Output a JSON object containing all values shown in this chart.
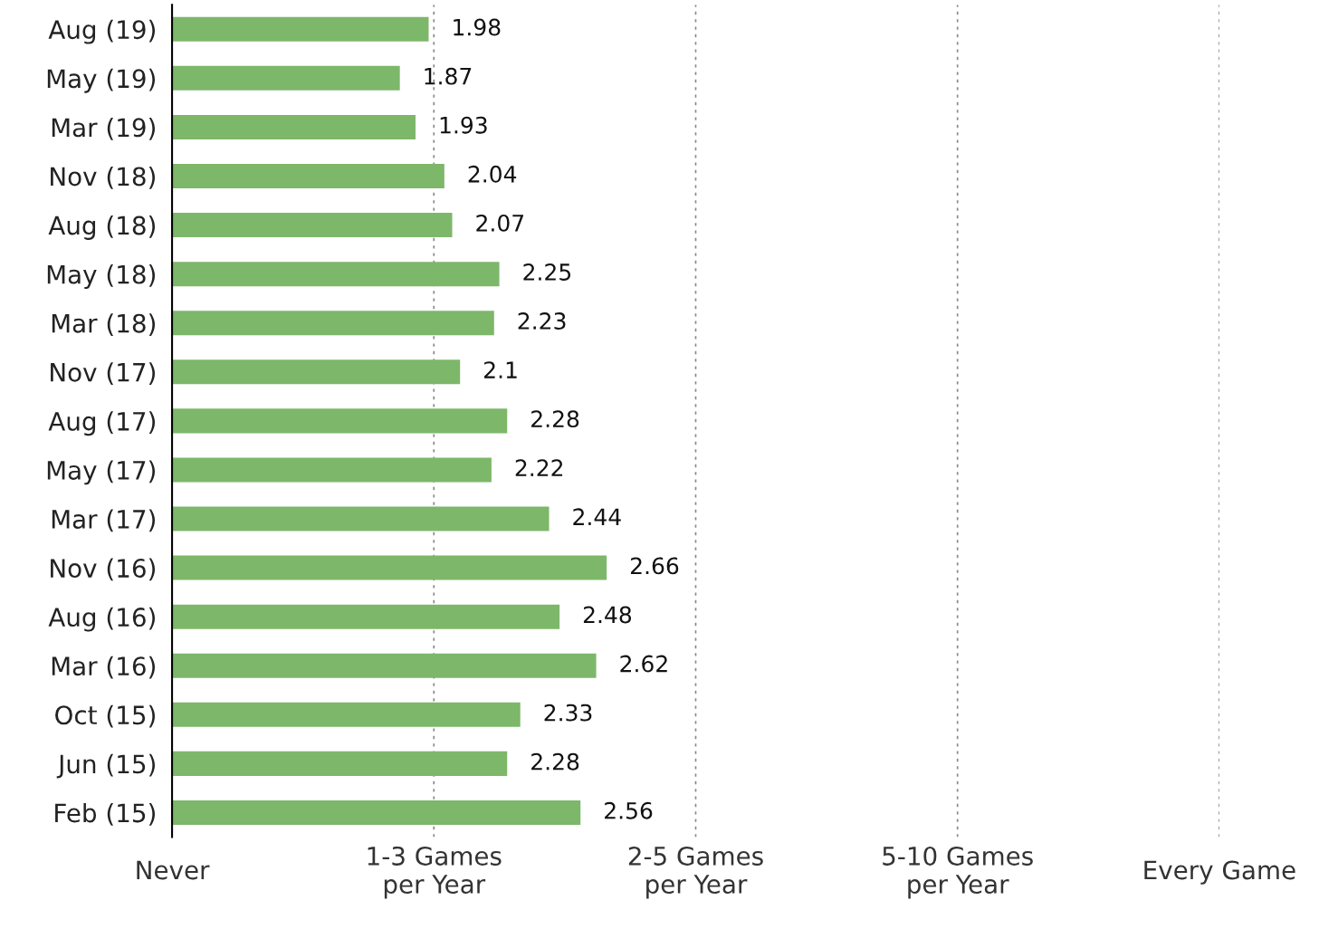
{
  "chart_data": {
    "type": "bar",
    "orientation": "horizontal",
    "categories": [
      "Aug (19)",
      "May (19)",
      "Mar (19)",
      "Nov (18)",
      "Aug (18)",
      "May (18)",
      "Mar (18)",
      "Nov (17)",
      "Aug (17)",
      "May (17)",
      "Mar (17)",
      "Nov (16)",
      "Aug (16)",
      "Mar (16)",
      "Oct (15)",
      "Jun (15)",
      "Feb (15)"
    ],
    "values": [
      1.98,
      1.87,
      1.93,
      2.04,
      2.07,
      2.25,
      2.23,
      2.1,
      2.28,
      2.22,
      2.44,
      2.66,
      2.48,
      2.62,
      2.33,
      2.28,
      2.56
    ],
    "color": "#7db76a",
    "xlim": [
      1,
      5
    ],
    "tick_labels": "y",
    "ref_lines": [
      {
        "axis": "x",
        "value": 2,
        "label": "1-3 Games\nper Year",
        "line_style": "dotted",
        "color": "#888888"
      },
      {
        "axis": "x",
        "value": 3,
        "label": "2-5 Games\nper Year",
        "line_style": "dotted",
        "color": "#888888"
      },
      {
        "axis": "x",
        "value": 4,
        "label": "5-10 Games\nper Year",
        "line_style": "dotted",
        "color": "#888888"
      },
      {
        "axis": "x",
        "value": 5,
        "label": "Every Game",
        "line_style": "dotted",
        "color": "#888888"
      }
    ],
    "annotations": [
      "Never"
    ],
    "data_labels": true,
    "legend": false
  }
}
